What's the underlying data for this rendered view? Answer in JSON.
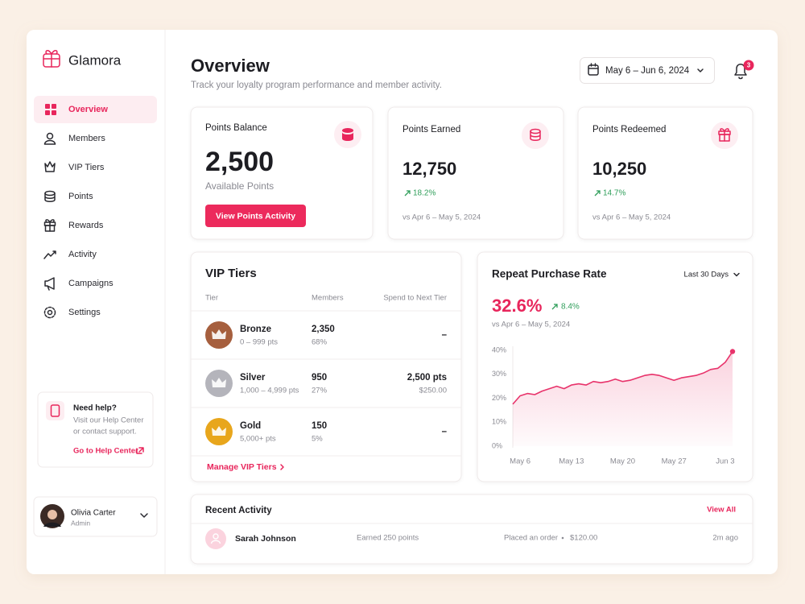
{
  "brand": "Glamora",
  "nav": [
    {
      "label": "Overview",
      "active": true
    },
    {
      "label": "Members",
      "active": false
    },
    {
      "label": "VIP Tiers",
      "active": false
    },
    {
      "label": "Points",
      "active": false
    },
    {
      "label": "Rewards",
      "active": false
    },
    {
      "label": "Activity",
      "active": false
    },
    {
      "label": "Campaigns",
      "active": false
    },
    {
      "label": "Settings",
      "active": false
    }
  ],
  "help": {
    "title": "Need help?",
    "lines": [
      "Visit our Help Center",
      "or contact support."
    ],
    "link": "Go to Help Center"
  },
  "user": {
    "name": "Olivia Carter",
    "role": "Admin"
  },
  "header": {
    "title": "Overview",
    "subtitle": "Track your loyalty program performance and member activity.",
    "date_range": "May 6 – Jun 6, 2024",
    "notifications": "3"
  },
  "balance": {
    "label": "Points Balance",
    "value": "2,500",
    "caption": "Available Points",
    "button": "View Points Activity"
  },
  "stats": [
    {
      "label": "Points Earned",
      "value": "12,750",
      "change": "18.2%",
      "period": "vs Apr 6 – May 5, 2024"
    },
    {
      "label": "Points Redeemed",
      "value": "10,250",
      "change": "14.7%",
      "period": "vs Apr 6 – May 5, 2024"
    }
  ],
  "vip": {
    "title": "VIP Tiers",
    "columns": [
      "Tier",
      "Members",
      "Spend to Next Tier"
    ],
    "rows": [
      {
        "name": "Bronze",
        "range": "0 – 999 pts",
        "members": "2,350",
        "share": "68%",
        "spend": "–",
        "color": "#a65f3e"
      },
      {
        "name": "Silver",
        "range": "1,000 – 4,999 pts",
        "members": "950",
        "share": "27%",
        "spend": "2,500 pts",
        "spend_sub": "$250.00",
        "color": "#b4b4bb"
      },
      {
        "name": "Gold",
        "range": "5,000+ pts",
        "members": "150",
        "share": "5%",
        "spend": "–",
        "color": "#e8a61c"
      }
    ],
    "link": "Manage VIP Tiers"
  },
  "chart_data": {
    "type": "line",
    "title": "Repeat Purchase Rate",
    "range_select": "Last 30 Days",
    "headline": "32.6%",
    "change": "8.4%",
    "comparison": "vs Apr 6 – May 5, 2024",
    "categories": [
      null,
      "May 6",
      null,
      null,
      null,
      null,
      null,
      null,
      "May 13",
      null,
      null,
      null,
      null,
      null,
      null,
      "May 20",
      null,
      null,
      null,
      null,
      null,
      null,
      "May 27",
      null,
      null,
      null,
      null,
      null,
      null,
      "Jun 3",
      null
    ],
    "values": [
      17.5,
      21,
      22,
      21.5,
      23,
      24,
      25,
      24,
      25.5,
      26,
      25.5,
      27,
      26.5,
      27,
      28,
      27,
      27.5,
      28.5,
      29.5,
      30,
      29.5,
      28.5,
      27.5,
      28.5,
      29,
      29.5,
      30.5,
      32,
      32.5,
      35,
      39.5
    ],
    "color": "#e8336b",
    "ylim": [
      0,
      40
    ],
    "yticks": [
      {
        "value": 0,
        "label": "0%"
      },
      {
        "value": 10,
        "label": "10%"
      },
      {
        "value": 20,
        "label": "20%"
      },
      {
        "value": 30,
        "label": "30%"
      },
      {
        "value": 40,
        "label": "40%"
      }
    ],
    "grid": false
  },
  "activity": {
    "title": "Recent Activity",
    "link": "View All",
    "rows": [
      {
        "name": "Sarah Johnson",
        "action": "Earned 250 points",
        "detail": "Placed an order",
        "amount": "$120.00",
        "time": "2m ago"
      }
    ]
  }
}
